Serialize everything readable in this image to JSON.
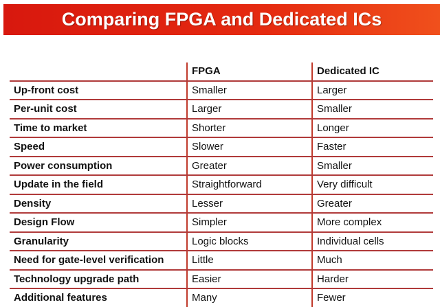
{
  "title": "Comparing FPGA and Dedicated ICs",
  "table": {
    "headers": [
      "",
      "FPGA",
      "Dedicated IC"
    ],
    "rows": [
      [
        "Up-front cost",
        "Smaller",
        "Larger"
      ],
      [
        "Per-unit cost",
        "Larger",
        "Smaller"
      ],
      [
        "Time to market",
        "Shorter",
        "Longer"
      ],
      [
        "Speed",
        "Slower",
        "Faster"
      ],
      [
        "Power consumption",
        "Greater",
        "Smaller"
      ],
      [
        "Update in the field",
        "Straightforward",
        "Very difficult"
      ],
      [
        "Density",
        "Lesser",
        "Greater"
      ],
      [
        "Design Flow",
        "Simpler",
        "More complex"
      ],
      [
        "Granularity",
        "Logic blocks",
        "Individual cells"
      ],
      [
        "Need for gate-level verification",
        "Little",
        "Much"
      ],
      [
        "Technology upgrade path",
        "Easier",
        "Harder"
      ],
      [
        "Additional features",
        "Many",
        "Fewer"
      ]
    ]
  },
  "colors": {
    "banner": "#e0200e",
    "rule": "#b03a3a"
  }
}
